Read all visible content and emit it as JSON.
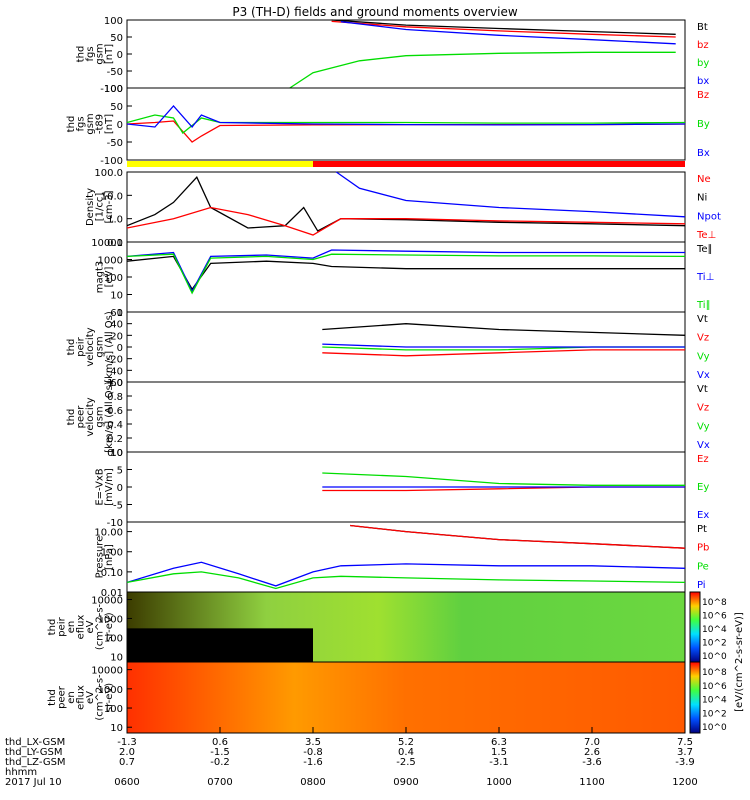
{
  "title": "P3 (TH-D) fields and ground moments overview",
  "colors": {
    "black": "#000000",
    "red": "#ff0000",
    "green": "#00dd00",
    "blue": "#0000ff",
    "yellow": "#ffff00"
  },
  "time_axis": {
    "hhmm_ticks": [
      "0600",
      "0700",
      "0800",
      "0900",
      "1000",
      "1100",
      "1200"
    ],
    "date": "2017 Jul 10",
    "rows": [
      {
        "name": "thd_LX-GSM",
        "values": [
          "-1.3",
          "0.6",
          "3.5",
          "5.2",
          "6.3",
          "7.0",
          "7.5"
        ]
      },
      {
        "name": "thd_LY-GSM",
        "values": [
          "2.0",
          "-1.5",
          "-0.8",
          "0.4",
          "1.5",
          "2.6",
          "3.7"
        ]
      },
      {
        "name": "thd_LZ-GSM",
        "values": [
          "0.7",
          "-0.2",
          "-1.6",
          "-2.5",
          "-3.1",
          "-3.6",
          "-3.9"
        ]
      },
      {
        "name": "hhmm",
        "values": []
      }
    ]
  },
  "colorbar": {
    "label": "[eV/(cm^2-s-sr-eV)]",
    "upper_ticks": [
      "10^8",
      "10^6",
      "10^4",
      "10^2",
      "10^0"
    ],
    "lower_ticks": [
      "10^8",
      "10^6",
      "10^4",
      "10^2",
      "10^0"
    ],
    "lower_label": "[eV/(cm^2-s-sr-eV)] (All Qs)"
  },
  "chart_data": [
    {
      "type": "line",
      "id": "fgs",
      "ylabel": [
        "thd",
        "fgs",
        "gsm",
        "[nT]"
      ],
      "ylim": [
        -100,
        100
      ],
      "yticks": [
        "100",
        "50",
        "0",
        "-50",
        "-100"
      ],
      "legend": [
        {
          "name": "Bt",
          "color": "#000000"
        },
        {
          "name": "bz",
          "color": "#ff0000"
        },
        {
          "name": "by",
          "color": "#00dd00"
        },
        {
          "name": "bx",
          "color": "#0000ff"
        }
      ],
      "series": [
        {
          "name": "Bt",
          "x": [
            8.2,
            9,
            10,
            11,
            11.9
          ],
          "y": [
            100,
            85,
            75,
            66,
            58
          ]
        },
        {
          "name": "bz",
          "x": [
            8.2,
            9,
            10,
            11,
            11.9
          ],
          "y": [
            96,
            80,
            68,
            58,
            50
          ]
        },
        {
          "name": "by",
          "x": [
            7.75,
            8,
            8.5,
            9,
            10,
            11,
            11.9
          ],
          "y": [
            -100,
            -55,
            -20,
            -5,
            2,
            5,
            5
          ]
        },
        {
          "name": "bx",
          "x": [
            8.3,
            9,
            10,
            11,
            11.9
          ],
          "y": [
            95,
            72,
            55,
            42,
            30
          ]
        }
      ]
    },
    {
      "type": "line",
      "id": "gsm_dsl",
      "ylabel": [
        "thd",
        "fgs",
        "gsm",
        "-t89",
        "[nT]"
      ],
      "ylim": [
        -120,
        120
      ],
      "yticks": [
        "100",
        "50",
        "0",
        "-50",
        "-100"
      ],
      "legend": [
        {
          "name": "Bz",
          "color": "#ff0000"
        },
        {
          "name": "By",
          "color": "#00dd00"
        },
        {
          "name": "Bx",
          "color": "#0000ff"
        }
      ],
      "series": [
        {
          "name": "Bz",
          "x": [
            6,
            6.3,
            6.5,
            6.7,
            6.8,
            7,
            8,
            9,
            10,
            11,
            12
          ],
          "y": [
            0,
            5,
            10,
            -60,
            -40,
            -5,
            -3,
            -2,
            -2,
            -2,
            0
          ]
        },
        {
          "name": "By",
          "x": [
            6,
            6.3,
            6.5,
            6.6,
            6.8,
            7,
            8,
            9,
            10,
            11,
            12
          ],
          "y": [
            5,
            30,
            20,
            -30,
            20,
            5,
            5,
            5,
            3,
            3,
            5
          ]
        },
        {
          "name": "Bx",
          "x": [
            6,
            6.3,
            6.5,
            6.7,
            6.8,
            7,
            8,
            9,
            10,
            11,
            12
          ],
          "y": [
            0,
            -10,
            60,
            -10,
            30,
            5,
            0,
            -2,
            -3,
            -2,
            0
          ]
        }
      ]
    },
    {
      "type": "line",
      "id": "density",
      "yscale": "log",
      "ylabel": [
        "Density",
        "[1/cc]",
        "[cm-3]"
      ],
      "ylim": [
        0.1,
        100
      ],
      "yticks": [
        "100.0",
        "10.0",
        "1.0",
        "0.1"
      ],
      "legend": [
        {
          "name": "Ne",
          "color": "#ff0000"
        },
        {
          "name": "Ni",
          "color": "#000000"
        },
        {
          "name": "Npot",
          "color": "#0000ff"
        },
        {
          "name": "Te⊥",
          "color": "#ff0000"
        }
      ],
      "series": [
        {
          "name": "Ni",
          "x": [
            6,
            6.3,
            6.5,
            6.75,
            6.9,
            7.3,
            7.7,
            7.9,
            8.05,
            8.3,
            9,
            10,
            11,
            12
          ],
          "y": [
            0.5,
            1.5,
            5,
            60,
            3,
            0.4,
            0.5,
            3,
            0.3,
            1,
            0.9,
            0.7,
            0.6,
            0.5
          ]
        },
        {
          "name": "Ne",
          "x": [
            6,
            6.5,
            6.9,
            7.3,
            7.7,
            8.0,
            8.3,
            9,
            10,
            11,
            12
          ],
          "y": [
            0.4,
            1,
            3,
            1.5,
            0.5,
            0.2,
            1,
            1,
            0.8,
            0.7,
            0.6
          ]
        },
        {
          "name": "Npot",
          "x": [
            8.25,
            8.5,
            9,
            10,
            11,
            12
          ],
          "y": [
            100,
            20,
            6,
            3,
            2,
            1.2
          ]
        }
      ]
    },
    {
      "type": "line",
      "id": "temp",
      "yscale": "log",
      "ylabel": [
        "magt3",
        "[eV]"
      ],
      "ylim": [
        1,
        10000
      ],
      "yticks": [
        "10000",
        "1000",
        "100",
        "10",
        "1"
      ],
      "legend": [
        {
          "name": "Te∥",
          "color": "#000000"
        },
        {
          "name": "Ti⊥",
          "color": "#0000ff"
        },
        {
          "name": "Ti∥",
          "color": "#00dd00"
        }
      ],
      "series": [
        {
          "name": "Te∥",
          "x": [
            6,
            6.5,
            6.7,
            6.9,
            7.5,
            8.0,
            8.2,
            9,
            10,
            11,
            12
          ],
          "y": [
            800,
            1500,
            20,
            600,
            800,
            600,
            400,
            300,
            300,
            300,
            300
          ]
        },
        {
          "name": "Ti⊥",
          "x": [
            6,
            6.5,
            6.7,
            6.9,
            7.5,
            8.0,
            8.2,
            9,
            10,
            11,
            12
          ],
          "y": [
            1500,
            2500,
            15,
            1500,
            1800,
            1200,
            3500,
            3000,
            2500,
            2500,
            2500
          ]
        },
        {
          "name": "Ti∥",
          "x": [
            6,
            6.5,
            6.7,
            6.9,
            7.5,
            8.0,
            8.2,
            9,
            10,
            11,
            12
          ],
          "y": [
            1500,
            2000,
            12,
            1200,
            1500,
            1000,
            2000,
            1800,
            1600,
            1600,
            1500
          ]
        }
      ]
    },
    {
      "type": "line",
      "id": "peir_vel",
      "ylabel": [
        "thd",
        "peir",
        "velocity",
        "gsm",
        "[km/s] (All Qs)"
      ],
      "ylim": [
        -60,
        60
      ],
      "yticks": [
        "60",
        "40",
        "20",
        "0",
        "-20",
        "-40",
        "-60"
      ],
      "legend": [
        {
          "name": "Vt",
          "color": "#000000"
        },
        {
          "name": "Vz",
          "color": "#ff0000"
        },
        {
          "name": "Vy",
          "color": "#00dd00"
        },
        {
          "name": "Vx",
          "color": "#0000ff"
        }
      ],
      "series": [
        {
          "name": "Vt",
          "x": [
            8.1,
            9,
            10,
            11,
            12
          ],
          "y": [
            30,
            40,
            30,
            25,
            20
          ]
        },
        {
          "name": "Vz",
          "x": [
            8.1,
            9,
            10,
            11,
            12
          ],
          "y": [
            -10,
            -15,
            -10,
            -5,
            -5
          ]
        },
        {
          "name": "Vy",
          "x": [
            8.1,
            9,
            10,
            11,
            12
          ],
          "y": [
            0,
            -5,
            -5,
            0,
            0
          ]
        },
        {
          "name": "Vx",
          "x": [
            8.1,
            9,
            10,
            11,
            12
          ],
          "y": [
            5,
            0,
            0,
            0,
            0
          ]
        }
      ]
    },
    {
      "type": "line",
      "id": "peer_vel",
      "ylabel": [
        "thd",
        "peer",
        "velocity",
        "gsm",
        "[km/s] (All Qs)"
      ],
      "ylim": [
        0,
        1
      ],
      "yticks": [
        "1.0",
        "0.8",
        "0.6",
        "0.4",
        "0.2",
        "0.0"
      ],
      "legend": [
        {
          "name": "Vt",
          "color": "#000000"
        },
        {
          "name": "Vz",
          "color": "#ff0000"
        },
        {
          "name": "Vy",
          "color": "#00dd00"
        },
        {
          "name": "Vx",
          "color": "#0000ff"
        }
      ],
      "series": []
    },
    {
      "type": "line",
      "id": "efield",
      "ylabel": [
        "E=-VxB",
        "[mV/m]"
      ],
      "ylim": [
        -10,
        10
      ],
      "yticks": [
        "10",
        "5",
        "0",
        "-5",
        "-10"
      ],
      "legend": [
        {
          "name": "Ez",
          "color": "#ff0000"
        },
        {
          "name": "Ey",
          "color": "#00dd00"
        },
        {
          "name": "Ex",
          "color": "#0000ff"
        }
      ],
      "series": [
        {
          "name": "Ey",
          "x": [
            8.1,
            9,
            10,
            11,
            12
          ],
          "y": [
            4,
            3,
            1,
            0.5,
            0.5
          ]
        },
        {
          "name": "Ez",
          "x": [
            8.1,
            9,
            10,
            11,
            12
          ],
          "y": [
            -1,
            -1,
            -0.5,
            0,
            0
          ]
        },
        {
          "name": "Ex",
          "x": [
            8.1,
            9,
            10,
            11,
            12
          ],
          "y": [
            0,
            0,
            0,
            0,
            0
          ]
        }
      ]
    },
    {
      "type": "line",
      "id": "pressure",
      "yscale": "log",
      "ylabel": [
        "Pressure",
        "[nPa]"
      ],
      "ylim": [
        0.01,
        30
      ],
      "yticks": [
        "10.00",
        "1.00",
        "0.10",
        "0.01"
      ],
      "legend": [
        {
          "name": "Pt",
          "color": "#000000"
        },
        {
          "name": "Pb",
          "color": "#ff0000"
        },
        {
          "name": "Pe",
          "color": "#00dd00"
        },
        {
          "name": "Pi",
          "color": "#0000ff"
        }
      ],
      "series": [
        {
          "name": "Pt",
          "x": [
            8.4,
            9,
            10,
            11,
            12
          ],
          "y": [
            20,
            10,
            4,
            2.5,
            1.5
          ]
        },
        {
          "name": "Pb",
          "x": [
            8.4,
            9,
            10,
            11,
            12
          ],
          "y": [
            20,
            10,
            4,
            2.5,
            1.5
          ]
        },
        {
          "name": "Pi",
          "x": [
            6,
            6.5,
            6.8,
            7.2,
            7.6,
            8.0,
            8.3,
            9,
            10,
            11,
            12
          ],
          "y": [
            0.03,
            0.15,
            0.3,
            0.08,
            0.02,
            0.1,
            0.2,
            0.25,
            0.2,
            0.2,
            0.15
          ]
        },
        {
          "name": "Pe",
          "x": [
            6,
            6.5,
            6.8,
            7.2,
            7.6,
            8.0,
            8.3,
            9,
            10,
            11,
            12
          ],
          "y": [
            0.03,
            0.08,
            0.1,
            0.05,
            0.015,
            0.05,
            0.06,
            0.05,
            0.04,
            0.035,
            0.03
          ]
        }
      ]
    },
    {
      "type": "heatmap",
      "id": "peir_eflux",
      "yscale": "log",
      "ylabel": [
        "thd",
        "peir",
        "en",
        "eflux",
        "eV",
        "(cm^2-s-",
        "sr-eV)"
      ],
      "ylim": [
        5,
        25000
      ],
      "yticks": [
        "10000",
        "1000",
        "100",
        "10"
      ],
      "description_values": {
        "quiet_fraction_black": true
      }
    },
    {
      "type": "heatmap",
      "id": "peer_eflux",
      "yscale": "log",
      "ylabel": [
        "thd",
        "peer",
        "en",
        "eflux",
        "eV",
        "(cm^2-s-",
        "sr-eV)"
      ],
      "ylim": [
        5,
        25000
      ],
      "yticks": [
        "10000",
        "1000",
        "100",
        "10"
      ]
    }
  ]
}
